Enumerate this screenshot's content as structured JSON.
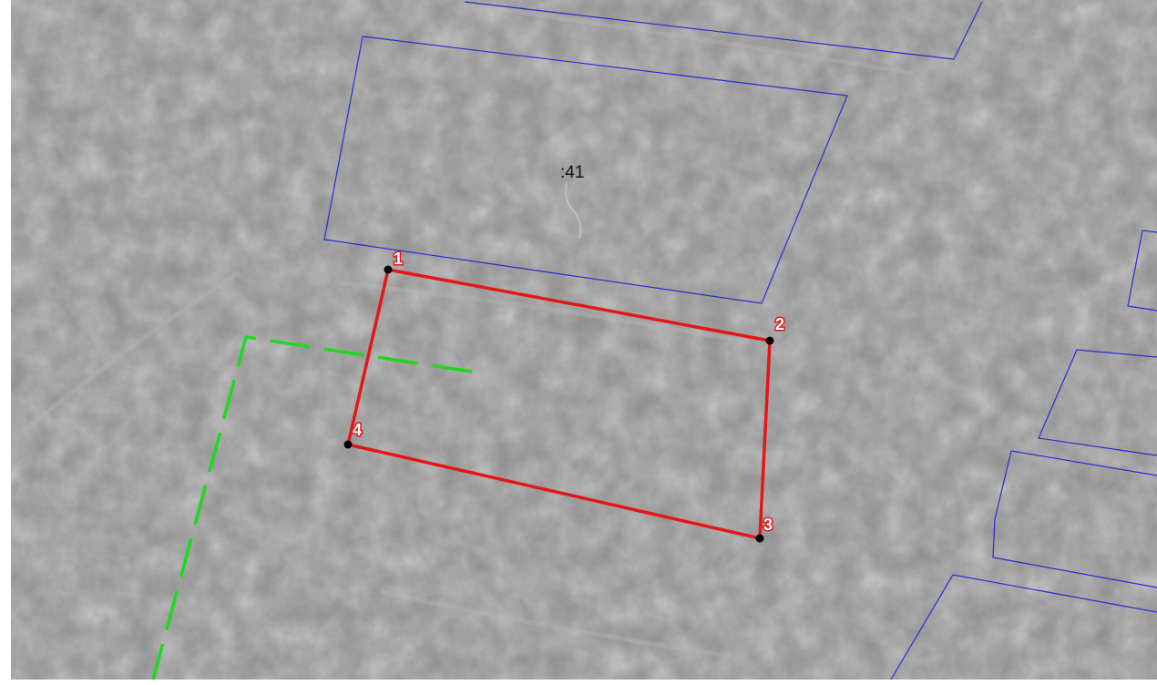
{
  "parcel": {
    "label": ":41"
  },
  "vertices": [
    {
      "label": "1"
    },
    {
      "label": "2"
    },
    {
      "label": "3"
    },
    {
      "label": "4"
    }
  ],
  "colors": {
    "cadastral_boundary": "#2b2bd6",
    "new_plot_outline": "#e51616",
    "road_dashed": "#1fd81f",
    "vertex_point": "#000000"
  }
}
